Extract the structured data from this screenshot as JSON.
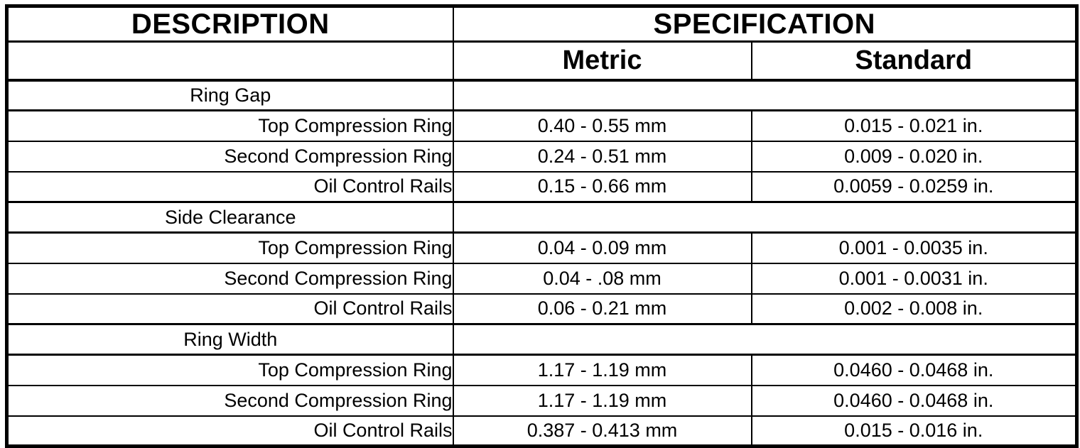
{
  "table": {
    "header": {
      "description": "DESCRIPTION",
      "specification": "SPECIFICATION",
      "metric": "Metric",
      "standard": "Standard"
    },
    "sections": [
      {
        "label": "Ring Gap",
        "rows": [
          {
            "description": "Top Compression Ring",
            "metric": "0.40 - 0.55 mm",
            "standard": "0.015 - 0.021 in."
          },
          {
            "description": "Second Compression Ring",
            "metric": "0.24 - 0.51 mm",
            "standard": "0.009 - 0.020 in."
          },
          {
            "description": "Oil Control Rails",
            "metric": "0.15 - 0.66 mm",
            "standard": "0.0059 - 0.0259 in."
          }
        ]
      },
      {
        "label": "Side Clearance",
        "rows": [
          {
            "description": "Top Compression Ring",
            "metric": "0.04 - 0.09 mm",
            "standard": "0.001 - 0.0035 in."
          },
          {
            "description": "Second Compression Ring",
            "metric": "0.04 - .08 mm",
            "standard": "0.001 - 0.0031 in."
          },
          {
            "description": "Oil Control Rails",
            "metric": "0.06 - 0.21 mm",
            "standard": "0.002 - 0.008 in."
          }
        ]
      },
      {
        "label": "Ring Width",
        "rows": [
          {
            "description": "Top Compression Ring",
            "metric": "1.17 - 1.19 mm",
            "standard": "0.0460 - 0.0468 in."
          },
          {
            "description": "Second Compression Ring",
            "metric": "1.17 - 1.19 mm",
            "standard": "0.0460 - 0.0468 in."
          },
          {
            "description": "Oil Control Rails",
            "metric": "0.387 - 0.413 mm",
            "standard": "0.015 - 0.016 in."
          }
        ]
      }
    ],
    "colors": {
      "border": "#000000",
      "text": "#000000",
      "background": "#ffffff"
    }
  }
}
